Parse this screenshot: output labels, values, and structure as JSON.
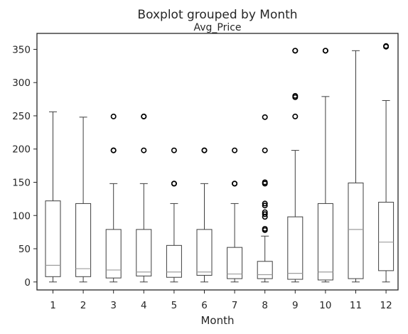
{
  "chart_data": {
    "type": "boxplot",
    "title": "Boxplot grouped by Month",
    "subtitle": "Avg_Price",
    "xlabel": "Month",
    "ylabel": "",
    "categories": [
      "1",
      "2",
      "3",
      "4",
      "5",
      "6",
      "7",
      "8",
      "9",
      "10",
      "11",
      "12"
    ],
    "y_ticks": [
      0,
      50,
      100,
      150,
      200,
      250,
      300,
      350
    ],
    "ylim": [
      -12,
      374
    ],
    "grid": false,
    "colors": {
      "box": "#3f3f3f",
      "median": "#9e9e9e",
      "axes": "#262626"
    },
    "boxes": [
      {
        "category": "1",
        "whislo": 0,
        "q1": 8,
        "med": 25,
        "q3": 122,
        "whishi": 256,
        "fliers": []
      },
      {
        "category": "2",
        "whislo": 0,
        "q1": 8,
        "med": 20,
        "q3": 118,
        "whishi": 248,
        "fliers": []
      },
      {
        "category": "3",
        "whislo": 0,
        "q1": 6,
        "med": 18,
        "q3": 79,
        "whishi": 148,
        "fliers": [
          198,
          198,
          249
        ]
      },
      {
        "category": "4",
        "whislo": 0,
        "q1": 9,
        "med": 15,
        "q3": 79,
        "whishi": 148,
        "fliers": [
          198,
          249,
          249
        ]
      },
      {
        "category": "5",
        "whislo": 0,
        "q1": 7,
        "med": 15,
        "q3": 55,
        "whishi": 118,
        "fliers": [
          148,
          148,
          198
        ]
      },
      {
        "category": "6",
        "whislo": 0,
        "q1": 10,
        "med": 15,
        "q3": 79,
        "whishi": 148,
        "fliers": [
          198,
          198
        ]
      },
      {
        "category": "7",
        "whislo": 0,
        "q1": 5,
        "med": 12,
        "q3": 52,
        "whishi": 118,
        "fliers": [
          148,
          148,
          198
        ]
      },
      {
        "category": "8",
        "whislo": 0,
        "q1": 5,
        "med": 11,
        "q3": 31,
        "whishi": 69,
        "fliers": [
          78,
          80,
          98,
          102,
          105,
          115,
          118,
          148,
          150,
          198,
          248
        ]
      },
      {
        "category": "9",
        "whislo": 0,
        "q1": 4,
        "med": 13,
        "q3": 98,
        "whishi": 198,
        "fliers": [
          249,
          278,
          280,
          348,
          348
        ]
      },
      {
        "category": "10",
        "whislo": 0,
        "q1": 3,
        "med": 15,
        "q3": 118,
        "whishi": 279,
        "fliers": [
          348,
          348
        ]
      },
      {
        "category": "11",
        "whislo": 0,
        "q1": 5,
        "med": 79,
        "q3": 149,
        "whishi": 348,
        "fliers": []
      },
      {
        "category": "12",
        "whislo": 0,
        "q1": 17,
        "med": 60,
        "q3": 120,
        "whishi": 273,
        "fliers": [
          354,
          355
        ]
      }
    ]
  }
}
